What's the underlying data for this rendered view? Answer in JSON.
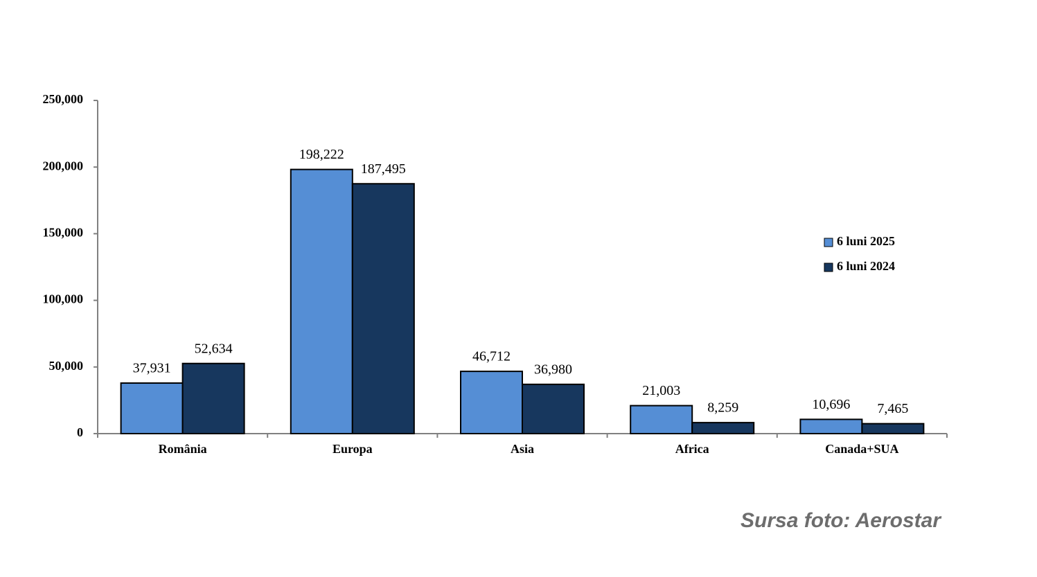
{
  "chart_data": {
    "type": "bar",
    "categories": [
      "România",
      "Europa",
      "Asia",
      "Africa",
      "Canada+SUA"
    ],
    "series": [
      {
        "name": "6 luni 2025",
        "color": "#558ed5",
        "values": [
          37931,
          198222,
          46712,
          21003,
          10696
        ],
        "value_labels": [
          "37,931",
          "198,222",
          "46,712",
          "21,003",
          "10,696"
        ]
      },
      {
        "name": "6 luni 2024",
        "color": "#17375e",
        "values": [
          52634,
          187495,
          36980,
          8259,
          7465
        ],
        "value_labels": [
          "52,634",
          "187,495",
          "36,980",
          "8,259",
          "7,465"
        ]
      }
    ],
    "ylim": [
      0,
      250000
    ],
    "yticks": [
      0,
      {
        "value": 50000,
        "label": "50,000"
      },
      {
        "value": 100000,
        "label": "100,000"
      },
      {
        "value": 150000,
        "label": "150,000"
      },
      {
        "value": 200000,
        "label": "200,000"
      },
      {
        "value": 250000,
        "label": "250,000"
      }
    ],
    "legend": "right",
    "source": "Sursa foto: Aerostar"
  }
}
